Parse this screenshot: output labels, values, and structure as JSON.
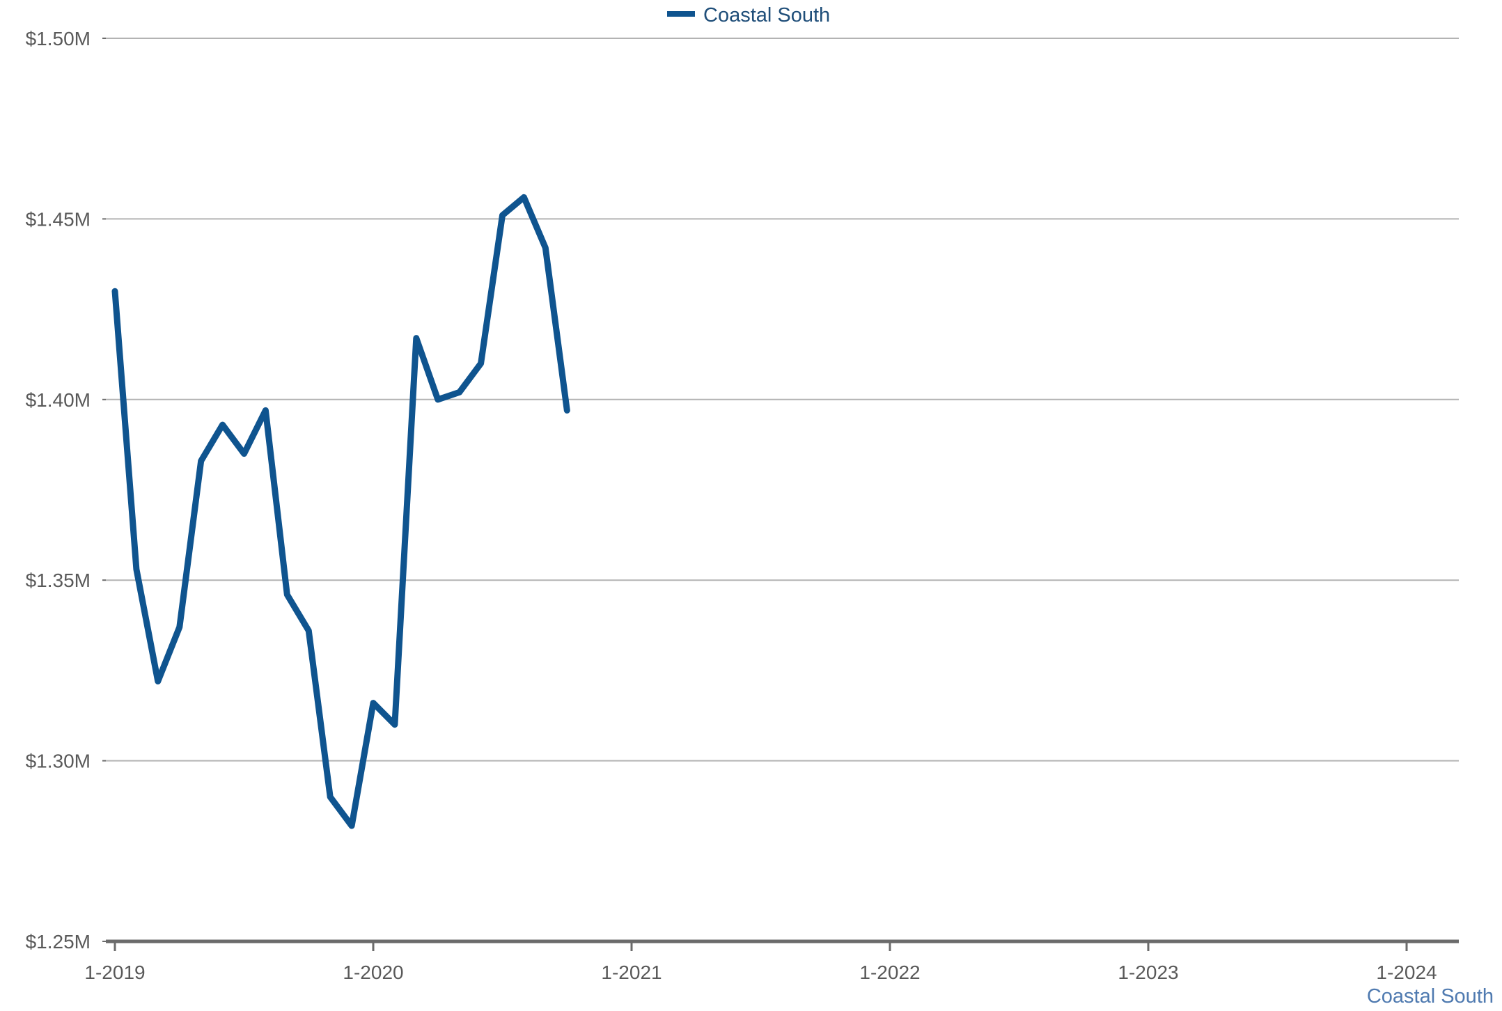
{
  "legend": {
    "label": "Coastal South",
    "color": "#0f548f"
  },
  "source_label": "Coastal South",
  "chart_data": {
    "type": "line",
    "x_tick_labels": [
      "1-2019",
      "1-2020",
      "1-2021",
      "1-2022",
      "1-2023",
      "1-2024"
    ],
    "y_tick_labels": [
      "$1.50M",
      "$1.45M",
      "$1.40M",
      "$1.35M",
      "$1.30M",
      "$1.25M"
    ],
    "y_ticks": [
      1.5,
      1.45,
      1.4,
      1.35,
      1.3,
      1.25
    ],
    "ylim": [
      1.25,
      1.5
    ],
    "xlim": [
      "2019-01",
      "2024-03"
    ],
    "grid": true,
    "legend_position": "top-center",
    "xlabel": "",
    "ylabel": "",
    "series": [
      {
        "name": "Coastal South",
        "color": "#0f548f",
        "x": [
          "2019-01",
          "2019-02",
          "2019-03",
          "2019-04",
          "2019-05",
          "2019-06",
          "2019-07",
          "2019-08",
          "2019-09",
          "2019-10",
          "2019-11",
          "2019-12",
          "2020-01",
          "2020-02",
          "2020-03",
          "2020-04",
          "2020-05",
          "2020-06",
          "2020-07",
          "2020-08",
          "2020-09",
          "2020-10"
        ],
        "values": [
          1.43,
          1.353,
          1.322,
          1.337,
          1.383,
          1.393,
          1.385,
          1.397,
          1.346,
          1.336,
          1.29,
          1.282,
          1.316,
          1.31,
          1.417,
          1.4,
          1.402,
          1.41,
          1.451,
          1.456,
          1.442,
          1.397
        ]
      }
    ]
  }
}
